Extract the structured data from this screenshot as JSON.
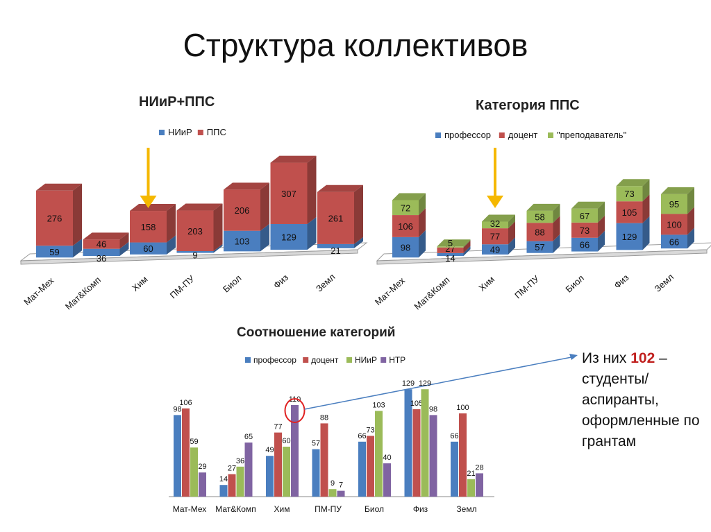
{
  "page": {
    "title": "Структура коллективов"
  },
  "note": {
    "prefix": "Из них ",
    "highlight": "102",
    "suffix": " – студенты/ аспиранты, оформленные по грантам"
  },
  "colors": {
    "blue": "#4a7ebf",
    "red": "#c0504d",
    "green": "#9bbb59",
    "purple": "#8064a2",
    "arrow": "#f5b800"
  },
  "chart_data": [
    {
      "id": "chart1",
      "type": "bar",
      "stacked": true,
      "three_d": true,
      "title": "НИиР+ППС",
      "categories": [
        "Мат-Мех",
        "Мат&Комп",
        "Хим",
        "ПМ-ПУ",
        "Биол",
        "Физ",
        "Земл"
      ],
      "series": [
        {
          "name": "НИиР",
          "color": "#4a7ebf",
          "values": [
            59,
            36,
            60,
            9,
            103,
            129,
            21
          ]
        },
        {
          "name": "ППС",
          "color": "#c0504d",
          "values": [
            276,
            46,
            158,
            203,
            206,
            307,
            261
          ]
        }
      ],
      "legend": "top",
      "highlight_arrow_category": "Хим"
    },
    {
      "id": "chart2",
      "type": "bar",
      "stacked": true,
      "three_d": true,
      "title": "Категория ППС",
      "categories": [
        "Мат-Мех",
        "Мат&Комп",
        "Хим",
        "ПМ-ПУ",
        "Биол",
        "Физ",
        "Земл"
      ],
      "series": [
        {
          "name": "профессор",
          "color": "#4a7ebf",
          "values": [
            98,
            14,
            49,
            57,
            66,
            129,
            66
          ]
        },
        {
          "name": "доцент",
          "color": "#c0504d",
          "values": [
            106,
            27,
            77,
            88,
            73,
            105,
            100
          ]
        },
        {
          "name": "\"преподаватель\"",
          "color": "#9bbb59",
          "values": [
            72,
            5,
            32,
            58,
            67,
            73,
            95
          ]
        }
      ],
      "legend": "top",
      "highlight_arrow_category": "Хим"
    },
    {
      "id": "chart3",
      "type": "bar",
      "stacked": false,
      "title": "Соотношение категорий",
      "categories": [
        "Мат-Мех",
        "Мат&Комп",
        "Хим",
        "ПМ-ПУ",
        "Биол",
        "Физ",
        "Земл"
      ],
      "series": [
        {
          "name": "профессор",
          "color": "#4a7ebf",
          "values": [
            98,
            14,
            49,
            57,
            66,
            129,
            66
          ]
        },
        {
          "name": "доцент",
          "color": "#c0504d",
          "values": [
            106,
            27,
            77,
            88,
            73,
            105,
            100
          ]
        },
        {
          "name": "НИиР",
          "color": "#9bbb59",
          "values": [
            59,
            36,
            60,
            9,
            103,
            129,
            21
          ]
        },
        {
          "name": "НТР",
          "color": "#8064a2",
          "values": [
            29,
            65,
            110,
            7,
            40,
            98,
            28
          ]
        }
      ],
      "legend": "top",
      "ylim": [
        0,
        130
      ],
      "highlight_circle": {
        "category": "Хим",
        "series": "НТР"
      }
    }
  ]
}
